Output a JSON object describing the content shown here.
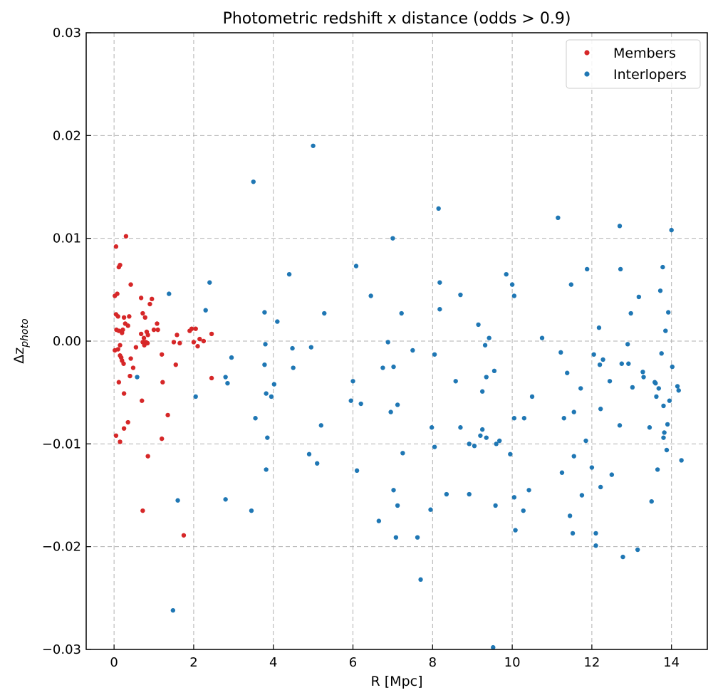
{
  "chart_data": {
    "type": "scatter",
    "title": "Photometric redshift x distance (odds > 0.9)",
    "xlabel": "R [Mpc]",
    "ylabel_base": "Δz",
    "ylabel_sub": "photo",
    "xlim": [
      -0.7,
      14.9
    ],
    "ylim": [
      -0.03,
      0.03
    ],
    "xticks": [
      0,
      2,
      4,
      6,
      8,
      10,
      12,
      14
    ],
    "xtick_labels": [
      "0",
      "2",
      "4",
      "6",
      "8",
      "10",
      "12",
      "14"
    ],
    "yticks": [
      -0.03,
      -0.02,
      -0.01,
      0.0,
      0.01,
      0.02,
      0.03
    ],
    "ytick_labels": [
      "−0.03",
      "−0.02",
      "−0.01",
      "0.00",
      "0.01",
      "0.02",
      "0.03"
    ],
    "grid": true,
    "legend_position": "top-right",
    "series": [
      {
        "name": "Members",
        "color": "#d62728",
        "points": [
          [
            0.02,
            0.0044
          ],
          [
            0.05,
            0.0092
          ],
          [
            0.05,
            0.0026
          ],
          [
            0.08,
            0.0046
          ],
          [
            0.1,
            0.0024
          ],
          [
            0.12,
            0.0072
          ],
          [
            0.15,
            0.0074
          ],
          [
            0.06,
            0.0011
          ],
          [
            0.12,
            0.001
          ],
          [
            0.2,
            0.0008
          ],
          [
            0.25,
            0.0023
          ],
          [
            0.3,
            0.0102
          ],
          [
            0.22,
            0.0011
          ],
          [
            0.28,
            0.0017
          ],
          [
            0.35,
            0.0015
          ],
          [
            0.38,
            0.0024
          ],
          [
            0.42,
            0.0055
          ],
          [
            0.15,
            -0.0014
          ],
          [
            0.02,
            -0.0009
          ],
          [
            0.1,
            -0.0008
          ],
          [
            0.18,
            -0.0016
          ],
          [
            0.2,
            -0.0019
          ],
          [
            0.24,
            -0.0022
          ],
          [
            0.15,
            -0.0004
          ],
          [
            0.12,
            -0.004
          ],
          [
            0.42,
            -0.0017
          ],
          [
            0.48,
            -0.0026
          ],
          [
            0.55,
            -0.0006
          ],
          [
            0.4,
            -0.0034
          ],
          [
            0.25,
            -0.0051
          ],
          [
            0.05,
            -0.0092
          ],
          [
            0.15,
            -0.0098
          ],
          [
            0.25,
            -0.0085
          ],
          [
            0.35,
            -0.0079
          ],
          [
            0.7,
            -0.0058
          ],
          [
            0.68,
            0.0042
          ],
          [
            0.72,
            0.0027
          ],
          [
            0.78,
            0.0023
          ],
          [
            0.68,
            0.0007
          ],
          [
            0.75,
            0.0003
          ],
          [
            0.82,
            0.0009
          ],
          [
            0.85,
            0.0006
          ],
          [
            0.72,
            -0.0001
          ],
          [
            0.76,
            -0.0004
          ],
          [
            0.8,
            -0.0001
          ],
          [
            0.84,
            -0.0002
          ],
          [
            0.9,
            0.0036
          ],
          [
            0.95,
            0.0041
          ],
          [
            1.0,
            0.0011
          ],
          [
            1.08,
            0.0017
          ],
          [
            1.1,
            0.0011
          ],
          [
            0.85,
            -0.0112
          ],
          [
            0.72,
            -0.0165
          ],
          [
            1.2,
            -0.0013
          ],
          [
            1.22,
            -0.004
          ],
          [
            1.35,
            -0.0072
          ],
          [
            1.2,
            -0.0095
          ],
          [
            1.5,
            -0.0001
          ],
          [
            1.58,
            0.0006
          ],
          [
            1.55,
            -0.0023
          ],
          [
            1.65,
            -0.0002
          ],
          [
            1.75,
            -0.0189
          ],
          [
            1.9,
            0.001
          ],
          [
            1.95,
            0.0012
          ],
          [
            2.0,
            -0.0001
          ],
          [
            2.05,
            0.0012
          ],
          [
            2.1,
            -0.0005
          ],
          [
            2.15,
            0.0002
          ],
          [
            2.25,
            0.0
          ],
          [
            2.45,
            0.0007
          ],
          [
            2.45,
            -0.0036
          ]
        ]
      },
      {
        "name": "Interlopers",
        "color": "#1f77b4",
        "points": [
          [
            0.58,
            -0.0035
          ],
          [
            1.38,
            0.0046
          ],
          [
            1.6,
            -0.0155
          ],
          [
            1.48,
            -0.0262
          ],
          [
            2.05,
            -0.0054
          ],
          [
            2.3,
            0.003
          ],
          [
            2.4,
            0.0057
          ],
          [
            2.8,
            -0.0035
          ],
          [
            2.85,
            -0.0041
          ],
          [
            2.95,
            -0.0016
          ],
          [
            2.8,
            -0.0154
          ],
          [
            3.45,
            -0.0165
          ],
          [
            3.5,
            0.0155
          ],
          [
            3.55,
            -0.0075
          ],
          [
            3.78,
            0.0028
          ],
          [
            3.8,
            -0.0003
          ],
          [
            3.78,
            -0.0023
          ],
          [
            3.82,
            -0.0051
          ],
          [
            3.85,
            -0.0094
          ],
          [
            3.82,
            -0.0125
          ],
          [
            3.95,
            -0.0054
          ],
          [
            4.02,
            -0.0042
          ],
          [
            4.1,
            0.0019
          ],
          [
            4.4,
            0.0065
          ],
          [
            4.48,
            -0.0007
          ],
          [
            4.5,
            -0.0026
          ],
          [
            4.9,
            -0.011
          ],
          [
            4.95,
            -0.0006
          ],
          [
            5.0,
            0.019
          ],
          [
            5.1,
            -0.0119
          ],
          [
            5.2,
            -0.0082
          ],
          [
            5.28,
            0.0027
          ],
          [
            5.95,
            -0.0058
          ],
          [
            6.0,
            -0.0039
          ],
          [
            6.08,
            0.0073
          ],
          [
            6.1,
            -0.0126
          ],
          [
            6.2,
            -0.0061
          ],
          [
            6.45,
            0.0044
          ],
          [
            6.65,
            -0.0175
          ],
          [
            6.75,
            -0.0026
          ],
          [
            6.88,
            -0.0001
          ],
          [
            6.95,
            -0.0069
          ],
          [
            7.0,
            0.01
          ],
          [
            7.02,
            -0.0025
          ],
          [
            7.02,
            -0.0145
          ],
          [
            7.08,
            -0.0191
          ],
          [
            7.12,
            -0.016
          ],
          [
            7.12,
            -0.0062
          ],
          [
            7.22,
            0.0027
          ],
          [
            7.25,
            -0.0109
          ],
          [
            7.5,
            -0.0009
          ],
          [
            7.62,
            -0.0191
          ],
          [
            7.7,
            -0.0232
          ],
          [
            7.95,
            -0.0164
          ],
          [
            7.98,
            -0.0084
          ],
          [
            8.05,
            -0.0103
          ],
          [
            8.05,
            -0.0013
          ],
          [
            8.15,
            0.0129
          ],
          [
            8.18,
            0.0057
          ],
          [
            8.18,
            0.0031
          ],
          [
            8.35,
            -0.0149
          ],
          [
            8.58,
            -0.0039
          ],
          [
            8.7,
            0.0045
          ],
          [
            8.7,
            -0.0084
          ],
          [
            8.92,
            -0.0149
          ],
          [
            8.92,
            -0.01
          ],
          [
            9.05,
            -0.0102
          ],
          [
            9.15,
            0.0016
          ],
          [
            9.2,
            -0.0092
          ],
          [
            9.25,
            -0.0086
          ],
          [
            9.25,
            -0.0049
          ],
          [
            9.32,
            -0.0004
          ],
          [
            9.35,
            -0.0094
          ],
          [
            9.35,
            -0.0035
          ],
          [
            9.42,
            0.0003
          ],
          [
            9.52,
            -0.0298
          ],
          [
            9.55,
            -0.0029
          ],
          [
            9.58,
            -0.016
          ],
          [
            9.6,
            -0.01
          ],
          [
            9.68,
            -0.0097
          ],
          [
            9.85,
            0.0065
          ],
          [
            9.95,
            -0.011
          ],
          [
            10.0,
            0.0055
          ],
          [
            10.05,
            0.0044
          ],
          [
            10.05,
            -0.0075
          ],
          [
            10.05,
            -0.0152
          ],
          [
            10.08,
            -0.0184
          ],
          [
            10.28,
            -0.0165
          ],
          [
            10.3,
            -0.0075
          ],
          [
            10.42,
            -0.0145
          ],
          [
            10.5,
            -0.0054
          ],
          [
            10.75,
            0.0003
          ],
          [
            11.15,
            0.012
          ],
          [
            11.22,
            -0.0011
          ],
          [
            11.25,
            -0.0128
          ],
          [
            11.3,
            -0.0075
          ],
          [
            11.38,
            -0.0031
          ],
          [
            11.45,
            -0.017
          ],
          [
            11.48,
            0.0055
          ],
          [
            11.52,
            -0.0187
          ],
          [
            11.55,
            -0.0112
          ],
          [
            11.55,
            -0.0069
          ],
          [
            11.72,
            -0.0046
          ],
          [
            11.75,
            -0.015
          ],
          [
            11.85,
            -0.0097
          ],
          [
            11.88,
            0.007
          ],
          [
            12.0,
            -0.0123
          ],
          [
            12.05,
            -0.0013
          ],
          [
            12.1,
            -0.0199
          ],
          [
            12.1,
            -0.0187
          ],
          [
            12.18,
            0.0013
          ],
          [
            12.2,
            -0.0023
          ],
          [
            12.22,
            -0.0066
          ],
          [
            12.22,
            -0.0142
          ],
          [
            12.28,
            -0.0018
          ],
          [
            12.45,
            -0.0039
          ],
          [
            12.5,
            -0.013
          ],
          [
            12.7,
            0.0112
          ],
          [
            12.7,
            -0.0082
          ],
          [
            12.72,
            0.007
          ],
          [
            12.75,
            -0.0022
          ],
          [
            12.78,
            -0.021
          ],
          [
            12.9,
            -0.0003
          ],
          [
            12.92,
            -0.0022
          ],
          [
            12.98,
            0.0027
          ],
          [
            13.02,
            -0.0045
          ],
          [
            13.15,
            -0.0203
          ],
          [
            13.18,
            0.0043
          ],
          [
            13.28,
            -0.003
          ],
          [
            13.3,
            -0.0035
          ],
          [
            13.45,
            -0.0084
          ],
          [
            13.5,
            -0.0156
          ],
          [
            13.58,
            -0.004
          ],
          [
            13.6,
            -0.0041
          ],
          [
            13.62,
            -0.0054
          ],
          [
            13.65,
            -0.0125
          ],
          [
            13.68,
            -0.0046
          ],
          [
            13.72,
            0.0049
          ],
          [
            13.75,
            -0.0012
          ],
          [
            13.78,
            0.0072
          ],
          [
            13.8,
            -0.0063
          ],
          [
            13.8,
            -0.0094
          ],
          [
            13.82,
            -0.0089
          ],
          [
            13.85,
            0.001
          ],
          [
            13.88,
            -0.0106
          ],
          [
            13.9,
            -0.0081
          ],
          [
            13.92,
            0.0028
          ],
          [
            13.95,
            -0.0058
          ],
          [
            14.0,
            0.0108
          ],
          [
            14.02,
            -0.0025
          ],
          [
            14.15,
            -0.0044
          ],
          [
            14.18,
            -0.0048
          ],
          [
            14.25,
            -0.0116
          ]
        ]
      }
    ]
  }
}
